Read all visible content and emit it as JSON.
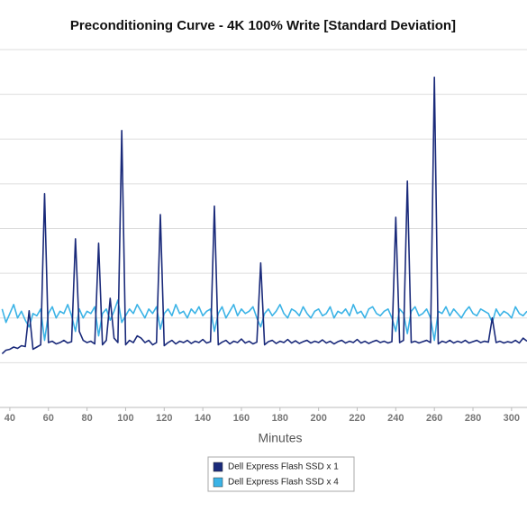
{
  "chart_data": {
    "type": "line",
    "title": "Preconditioning Curve - 4K 100% Write [Standard Deviation]",
    "x_label": "Minutes",
    "x": [
      36,
      38,
      40,
      42,
      44,
      46,
      48,
      50,
      52,
      54,
      56,
      58,
      60,
      62,
      64,
      66,
      68,
      70,
      72,
      74,
      76,
      78,
      80,
      82,
      84,
      86,
      88,
      90,
      92,
      94,
      96,
      98,
      100,
      102,
      104,
      106,
      108,
      110,
      112,
      114,
      116,
      118,
      120,
      122,
      124,
      126,
      128,
      130,
      132,
      134,
      136,
      138,
      140,
      142,
      144,
      146,
      148,
      150,
      152,
      154,
      156,
      158,
      160,
      162,
      164,
      166,
      168,
      170,
      172,
      174,
      176,
      178,
      180,
      182,
      184,
      186,
      188,
      190,
      192,
      194,
      196,
      198,
      200,
      202,
      204,
      206,
      208,
      210,
      212,
      214,
      216,
      218,
      220,
      222,
      224,
      226,
      228,
      230,
      232,
      234,
      236,
      238,
      240,
      242,
      244,
      246,
      248,
      250,
      252,
      254,
      256,
      258,
      260,
      262,
      264,
      266,
      268,
      270,
      272,
      274,
      276,
      278,
      280,
      282,
      284,
      286,
      288,
      290,
      292,
      294,
      296,
      298,
      300,
      302,
      304,
      306,
      308
    ],
    "series": [
      {
        "name": "Dell Express Flash SSD x 1",
        "color": "#1a2a7a",
        "values": [
          1.2,
          1.28,
          1.3,
          1.35,
          1.32,
          1.38,
          1.36,
          2.16,
          1.3,
          1.35,
          1.4,
          4.78,
          1.45,
          1.48,
          1.42,
          1.45,
          1.5,
          1.44,
          1.47,
          3.77,
          1.7,
          1.5,
          1.45,
          1.48,
          1.42,
          3.67,
          1.4,
          1.5,
          2.44,
          1.55,
          1.45,
          6.19,
          1.4,
          1.5,
          1.45,
          1.6,
          1.55,
          1.45,
          1.5,
          1.4,
          1.45,
          4.31,
          1.38,
          1.45,
          1.5,
          1.42,
          1.48,
          1.45,
          1.5,
          1.43,
          1.48,
          1.45,
          1.52,
          1.44,
          1.47,
          4.5,
          1.4,
          1.46,
          1.5,
          1.42,
          1.48,
          1.45,
          1.53,
          1.44,
          1.48,
          1.42,
          1.46,
          3.23,
          1.4,
          1.47,
          1.5,
          1.43,
          1.48,
          1.45,
          1.52,
          1.44,
          1.49,
          1.43,
          1.47,
          1.5,
          1.44,
          1.48,
          1.45,
          1.51,
          1.44,
          1.48,
          1.42,
          1.47,
          1.5,
          1.44,
          1.48,
          1.45,
          1.52,
          1.44,
          1.48,
          1.43,
          1.47,
          1.5,
          1.45,
          1.48,
          1.44,
          1.47,
          4.25,
          1.45,
          1.5,
          5.06,
          1.45,
          1.48,
          1.44,
          1.47,
          1.5,
          1.45,
          7.38,
          1.42,
          1.48,
          1.45,
          1.5,
          1.44,
          1.48,
          1.45,
          1.5,
          1.44,
          1.47,
          1.5,
          1.45,
          1.48,
          1.46,
          2.0,
          1.45,
          1.48,
          1.44,
          1.47,
          1.45,
          1.5,
          1.44,
          1.55,
          1.48
        ]
      },
      {
        "name": "Dell Express Flash SSD x 4",
        "color": "#3bb3e6",
        "values": [
          2.2,
          1.9,
          2.1,
          2.3,
          2.0,
          2.15,
          1.95,
          1.8,
          2.1,
          2.05,
          2.2,
          1.5,
          2.1,
          2.25,
          2.0,
          2.15,
          2.1,
          2.3,
          2.05,
          1.7,
          2.2,
          2.0,
          2.15,
          2.1,
          2.25,
          1.6,
          2.1,
          2.2,
          1.95,
          2.15,
          2.4,
          1.9,
          2.05,
          2.2,
          2.1,
          2.3,
          2.15,
          2.0,
          2.2,
          2.1,
          2.25,
          1.75,
          2.1,
          2.2,
          2.05,
          2.3,
          2.1,
          2.15,
          2.0,
          2.2,
          2.1,
          2.25,
          2.05,
          2.15,
          2.2,
          1.7,
          2.1,
          2.25,
          2.0,
          2.15,
          2.3,
          2.05,
          2.2,
          2.1,
          2.15,
          2.25,
          2.0,
          1.8,
          2.1,
          2.2,
          2.05,
          2.15,
          2.3,
          2.1,
          2.0,
          2.2,
          2.15,
          2.05,
          2.25,
          2.1,
          2.0,
          2.15,
          2.2,
          2.05,
          2.1,
          2.25,
          2.0,
          2.15,
          2.1,
          2.2,
          2.05,
          2.3,
          2.1,
          2.15,
          2.0,
          2.2,
          2.25,
          2.1,
          2.05,
          2.15,
          2.2,
          2.0,
          1.7,
          2.2,
          2.1,
          1.65,
          2.15,
          2.25,
          2.05,
          2.1,
          2.2,
          2.0,
          1.5,
          2.15,
          2.1,
          2.25,
          2.05,
          2.2,
          2.1,
          2.0,
          2.15,
          2.25,
          2.1,
          2.05,
          2.2,
          2.15,
          2.1,
          1.9,
          2.2,
          2.05,
          2.15,
          2.1,
          2.0,
          2.25,
          2.1,
          2.05,
          2.15
        ]
      }
    ],
    "xlim": [
      34.9,
      308.0
    ],
    "ylim": [
      0,
      8.1
    ],
    "xticks": [
      40,
      60,
      80,
      100,
      120,
      140,
      160,
      180,
      200,
      220,
      240,
      260,
      280,
      300
    ],
    "ygrid": [
      1,
      2,
      3,
      4,
      5,
      6,
      7,
      8
    ],
    "grid": true
  }
}
